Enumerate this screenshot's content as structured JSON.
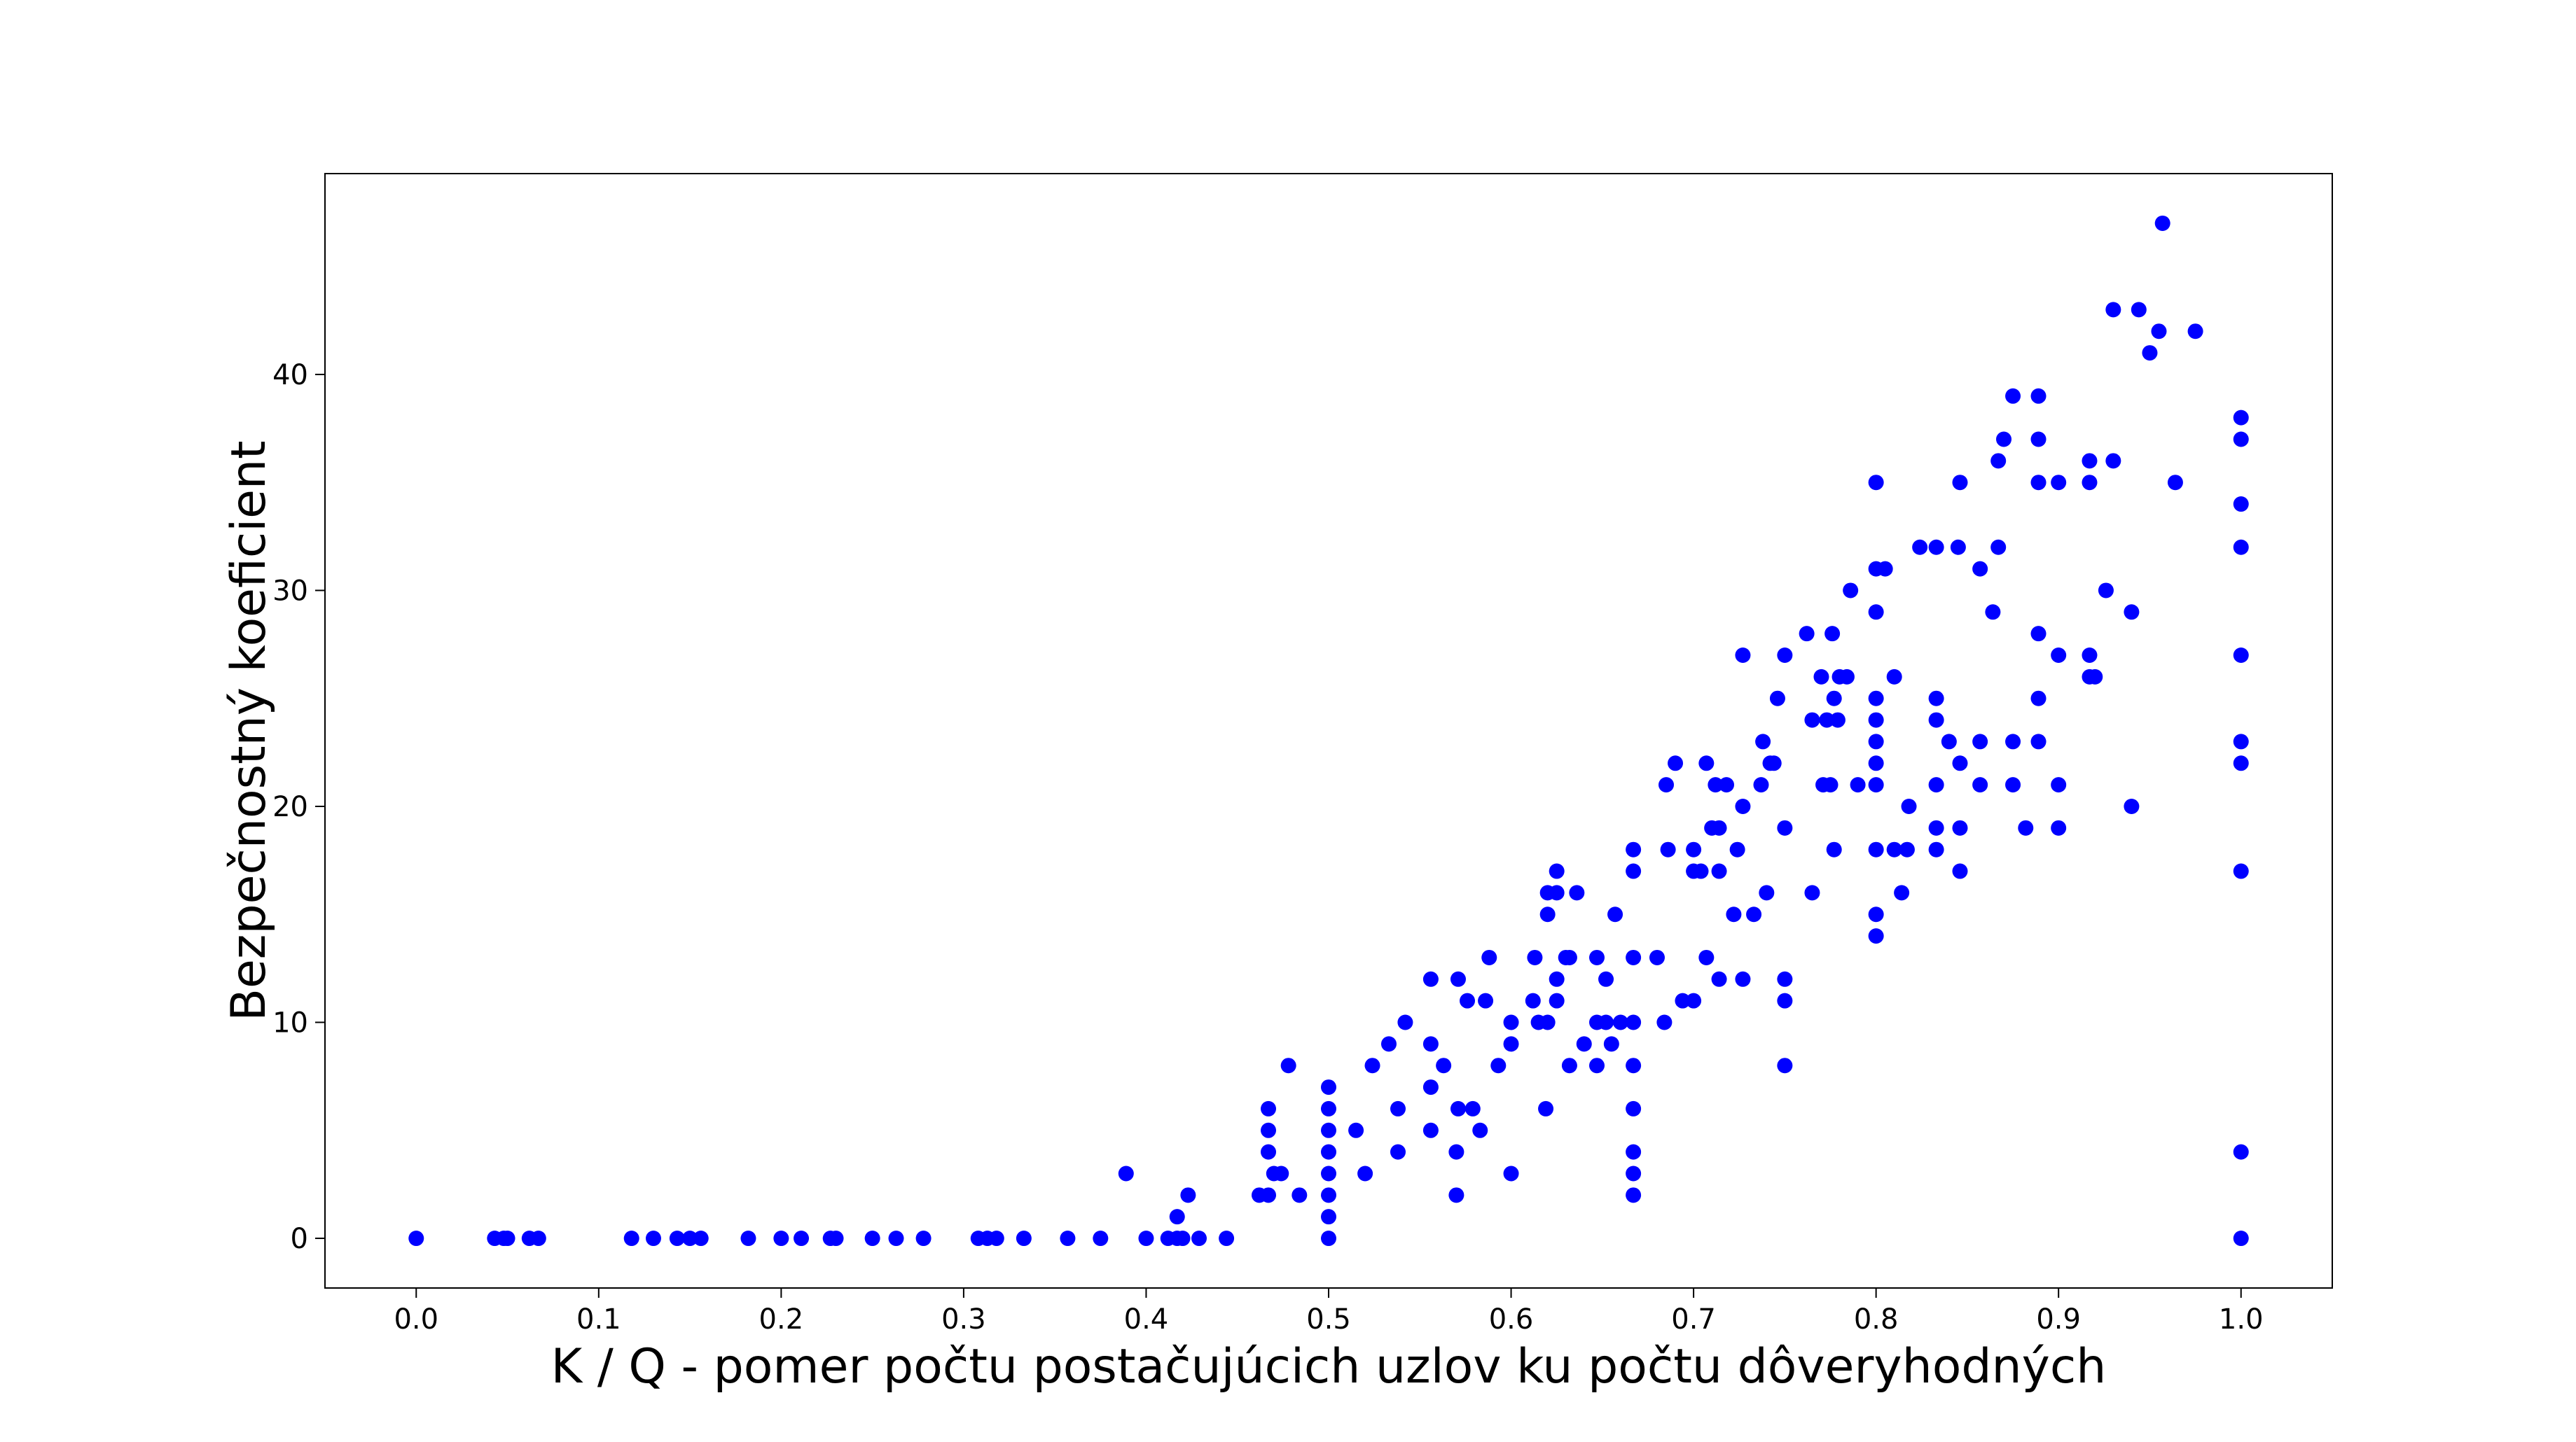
{
  "chart_data": {
    "type": "scatter",
    "title": "",
    "xlabel": "K / Q - pomer počtu postačujúcich uzlov ku počtu dôveryhodných",
    "ylabel": "Bezpečnostný koeficient",
    "xlim": [
      -0.05,
      1.05
    ],
    "ylim": [
      -2.3,
      49.3
    ],
    "xticks": [
      "0.0",
      "0.1",
      "0.2",
      "0.3",
      "0.4",
      "0.5",
      "0.6",
      "0.7",
      "0.8",
      "0.9",
      "1.0"
    ],
    "yticks": [
      "0",
      "10",
      "20",
      "30",
      "40"
    ],
    "grid": false,
    "marker_color": "#0000ff",
    "series": [
      {
        "points": [
          [
            0.0,
            0
          ],
          [
            0.043,
            0
          ],
          [
            0.048,
            0
          ],
          [
            0.05,
            0
          ],
          [
            0.062,
            0
          ],
          [
            0.067,
            0
          ],
          [
            0.118,
            0
          ],
          [
            0.13,
            0
          ],
          [
            0.143,
            0
          ],
          [
            0.15,
            0
          ],
          [
            0.156,
            0
          ],
          [
            0.182,
            0
          ],
          [
            0.2,
            0
          ],
          [
            0.211,
            0
          ],
          [
            0.227,
            0
          ],
          [
            0.23,
            0
          ],
          [
            0.25,
            0
          ],
          [
            0.263,
            0
          ],
          [
            0.278,
            0
          ],
          [
            0.308,
            0
          ],
          [
            0.313,
            0
          ],
          [
            0.318,
            0
          ],
          [
            0.333,
            0
          ],
          [
            0.357,
            0
          ],
          [
            0.375,
            0
          ],
          [
            0.4,
            0
          ],
          [
            0.412,
            0
          ],
          [
            0.417,
            0
          ],
          [
            0.42,
            0
          ],
          [
            0.429,
            0
          ],
          [
            0.444,
            0
          ],
          [
            0.389,
            3
          ],
          [
            0.417,
            1
          ],
          [
            0.423,
            2
          ],
          [
            0.462,
            2
          ],
          [
            0.467,
            2
          ],
          [
            0.467,
            4
          ],
          [
            0.467,
            5
          ],
          [
            0.467,
            6
          ],
          [
            0.47,
            3
          ],
          [
            0.474,
            3
          ],
          [
            0.478,
            8
          ],
          [
            0.484,
            2
          ],
          [
            0.5,
            0
          ],
          [
            0.5,
            1
          ],
          [
            0.5,
            2
          ],
          [
            0.5,
            3
          ],
          [
            0.5,
            4
          ],
          [
            0.5,
            5
          ],
          [
            0.5,
            6
          ],
          [
            0.5,
            7
          ],
          [
            0.515,
            5
          ],
          [
            0.52,
            3
          ],
          [
            0.524,
            8
          ],
          [
            0.533,
            9
          ],
          [
            0.538,
            4
          ],
          [
            0.538,
            6
          ],
          [
            0.542,
            10
          ],
          [
            0.556,
            5
          ],
          [
            0.556,
            7
          ],
          [
            0.556,
            9
          ],
          [
            0.556,
            12
          ],
          [
            0.563,
            8
          ],
          [
            0.57,
            2
          ],
          [
            0.57,
            4
          ],
          [
            0.571,
            6
          ],
          [
            0.571,
            12
          ],
          [
            0.576,
            11
          ],
          [
            0.579,
            6
          ],
          [
            0.583,
            5
          ],
          [
            0.586,
            11
          ],
          [
            0.588,
            13
          ],
          [
            0.593,
            8
          ],
          [
            0.6,
            3
          ],
          [
            0.6,
            9
          ],
          [
            0.6,
            10
          ],
          [
            0.612,
            11
          ],
          [
            0.613,
            13
          ],
          [
            0.615,
            10
          ],
          [
            0.619,
            6
          ],
          [
            0.62,
            10
          ],
          [
            0.62,
            15
          ],
          [
            0.62,
            16
          ],
          [
            0.625,
            11
          ],
          [
            0.625,
            12
          ],
          [
            0.625,
            16
          ],
          [
            0.625,
            17
          ],
          [
            0.63,
            13
          ],
          [
            0.632,
            8
          ],
          [
            0.632,
            13
          ],
          [
            0.636,
            16
          ],
          [
            0.64,
            9
          ],
          [
            0.647,
            8
          ],
          [
            0.647,
            10
          ],
          [
            0.647,
            13
          ],
          [
            0.652,
            10
          ],
          [
            0.652,
            12
          ],
          [
            0.655,
            9
          ],
          [
            0.657,
            15
          ],
          [
            0.66,
            10
          ],
          [
            0.667,
            2
          ],
          [
            0.667,
            3
          ],
          [
            0.667,
            4
          ],
          [
            0.667,
            6
          ],
          [
            0.667,
            8
          ],
          [
            0.667,
            10
          ],
          [
            0.667,
            13
          ],
          [
            0.667,
            17
          ],
          [
            0.667,
            18
          ],
          [
            0.68,
            13
          ],
          [
            0.684,
            10
          ],
          [
            0.685,
            21
          ],
          [
            0.686,
            18
          ],
          [
            0.69,
            22
          ],
          [
            0.694,
            11
          ],
          [
            0.7,
            11
          ],
          [
            0.7,
            17
          ],
          [
            0.7,
            18
          ],
          [
            0.704,
            17
          ],
          [
            0.707,
            22
          ],
          [
            0.707,
            13
          ],
          [
            0.71,
            19
          ],
          [
            0.712,
            21
          ],
          [
            0.714,
            12
          ],
          [
            0.714,
            17
          ],
          [
            0.714,
            19
          ],
          [
            0.718,
            21
          ],
          [
            0.722,
            15
          ],
          [
            0.724,
            18
          ],
          [
            0.727,
            12
          ],
          [
            0.727,
            20
          ],
          [
            0.727,
            27
          ],
          [
            0.733,
            15
          ],
          [
            0.737,
            21
          ],
          [
            0.738,
            23
          ],
          [
            0.74,
            16
          ],
          [
            0.742,
            22
          ],
          [
            0.744,
            22
          ],
          [
            0.746,
            25
          ],
          [
            0.75,
            8
          ],
          [
            0.75,
            11
          ],
          [
            0.75,
            12
          ],
          [
            0.75,
            19
          ],
          [
            0.75,
            27
          ],
          [
            0.762,
            28
          ],
          [
            0.765,
            16
          ],
          [
            0.765,
            24
          ],
          [
            0.77,
            26
          ],
          [
            0.771,
            21
          ],
          [
            0.773,
            24
          ],
          [
            0.775,
            21
          ],
          [
            0.776,
            28
          ],
          [
            0.777,
            18
          ],
          [
            0.777,
            25
          ],
          [
            0.779,
            24
          ],
          [
            0.78,
            26
          ],
          [
            0.784,
            26
          ],
          [
            0.786,
            30
          ],
          [
            0.79,
            21
          ],
          [
            0.8,
            14
          ],
          [
            0.8,
            15
          ],
          [
            0.8,
            18
          ],
          [
            0.8,
            21
          ],
          [
            0.8,
            22
          ],
          [
            0.8,
            23
          ],
          [
            0.8,
            24
          ],
          [
            0.8,
            25
          ],
          [
            0.8,
            29
          ],
          [
            0.8,
            31
          ],
          [
            0.8,
            35
          ],
          [
            0.805,
            31
          ],
          [
            0.81,
            26
          ],
          [
            0.81,
            18
          ],
          [
            0.814,
            16
          ],
          [
            0.817,
            18
          ],
          [
            0.818,
            20
          ],
          [
            0.824,
            32
          ],
          [
            0.833,
            18
          ],
          [
            0.833,
            19
          ],
          [
            0.833,
            21
          ],
          [
            0.833,
            24
          ],
          [
            0.833,
            25
          ],
          [
            0.833,
            32
          ],
          [
            0.84,
            23
          ],
          [
            0.845,
            32
          ],
          [
            0.846,
            17
          ],
          [
            0.846,
            19
          ],
          [
            0.846,
            22
          ],
          [
            0.846,
            35
          ],
          [
            0.857,
            21
          ],
          [
            0.857,
            23
          ],
          [
            0.857,
            31
          ],
          [
            0.864,
            29
          ],
          [
            0.867,
            32
          ],
          [
            0.867,
            36
          ],
          [
            0.87,
            37
          ],
          [
            0.875,
            21
          ],
          [
            0.875,
            23
          ],
          [
            0.875,
            39
          ],
          [
            0.882,
            19
          ],
          [
            0.889,
            23
          ],
          [
            0.889,
            25
          ],
          [
            0.889,
            28
          ],
          [
            0.889,
            35
          ],
          [
            0.889,
            37
          ],
          [
            0.889,
            39
          ],
          [
            0.9,
            19
          ],
          [
            0.9,
            21
          ],
          [
            0.9,
            27
          ],
          [
            0.9,
            35
          ],
          [
            0.917,
            26
          ],
          [
            0.917,
            27
          ],
          [
            0.917,
            35
          ],
          [
            0.917,
            36
          ],
          [
            0.92,
            26
          ],
          [
            0.926,
            30
          ],
          [
            0.93,
            36
          ],
          [
            0.93,
            43
          ],
          [
            0.94,
            20
          ],
          [
            0.94,
            29
          ],
          [
            0.944,
            43
          ],
          [
            0.95,
            41
          ],
          [
            0.955,
            42
          ],
          [
            0.957,
            47
          ],
          [
            0.964,
            35
          ],
          [
            0.975,
            42
          ],
          [
            1.0,
            0
          ],
          [
            1.0,
            4
          ],
          [
            1.0,
            17
          ],
          [
            1.0,
            22
          ],
          [
            1.0,
            23
          ],
          [
            1.0,
            27
          ],
          [
            1.0,
            32
          ],
          [
            1.0,
            34
          ],
          [
            1.0,
            37
          ],
          [
            1.0,
            38
          ]
        ]
      }
    ]
  }
}
